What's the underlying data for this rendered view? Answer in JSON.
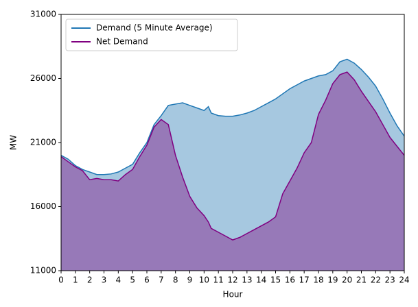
{
  "chart_data": {
    "type": "area",
    "xlabel": "Hour",
    "ylabel": "MW",
    "x": [
      0,
      0.5,
      1,
      1.5,
      2,
      2.5,
      3,
      3.5,
      4,
      4.5,
      5,
      5.5,
      6,
      6.5,
      7,
      7.5,
      8,
      8.5,
      9,
      9.5,
      10,
      10.3,
      10.5,
      11,
      11.5,
      12,
      12.5,
      13,
      13.5,
      14,
      14.5,
      15,
      15.5,
      16,
      16.5,
      17,
      17.5,
      18,
      18.5,
      19,
      19.5,
      20,
      20.5,
      21,
      21.5,
      22,
      22.5,
      23,
      23.5,
      24
    ],
    "series": [
      {
        "name": "Demand (5 Minute Average)",
        "color": "#1f77b4",
        "fill": "#a6c8e0",
        "values": [
          20000,
          19700,
          19200,
          18900,
          18700,
          18500,
          18500,
          18550,
          18700,
          19000,
          19300,
          20200,
          21000,
          22400,
          23100,
          23900,
          24000,
          24100,
          23900,
          23700,
          23500,
          23800,
          23300,
          23100,
          23050,
          23050,
          23150,
          23300,
          23500,
          23800,
          24100,
          24400,
          24800,
          25200,
          25500,
          25800,
          26000,
          26200,
          26300,
          26600,
          27300,
          27500,
          27200,
          26700,
          26100,
          25400,
          24400,
          23300,
          22300,
          21500
        ]
      },
      {
        "name": "Net Demand",
        "color": "#800080",
        "fill": "#9779b8",
        "values": [
          19900,
          19500,
          19100,
          18800,
          18100,
          18200,
          18100,
          18100,
          18000,
          18500,
          18900,
          19900,
          20800,
          22200,
          22800,
          22400,
          20000,
          18300,
          16800,
          15900,
          15300,
          14800,
          14300,
          14000,
          13700,
          13400,
          13600,
          13900,
          14200,
          14500,
          14800,
          15200,
          17000,
          18000,
          19000,
          20200,
          21000,
          23200,
          24300,
          25600,
          26300,
          26500,
          25900,
          25000,
          24200,
          23400,
          22400,
          21400,
          20700,
          20000
        ]
      }
    ],
    "xlim": [
      0,
      24
    ],
    "xticks": [
      0,
      1,
      2,
      3,
      4,
      5,
      6,
      7,
      8,
      9,
      10,
      11,
      12,
      13,
      14,
      15,
      16,
      17,
      18,
      19,
      20,
      21,
      22,
      23,
      24
    ],
    "ylim": [
      11000,
      31000
    ],
    "yticks": [
      11000,
      16000,
      21000,
      26000,
      31000
    ],
    "legend": "upper left"
  }
}
